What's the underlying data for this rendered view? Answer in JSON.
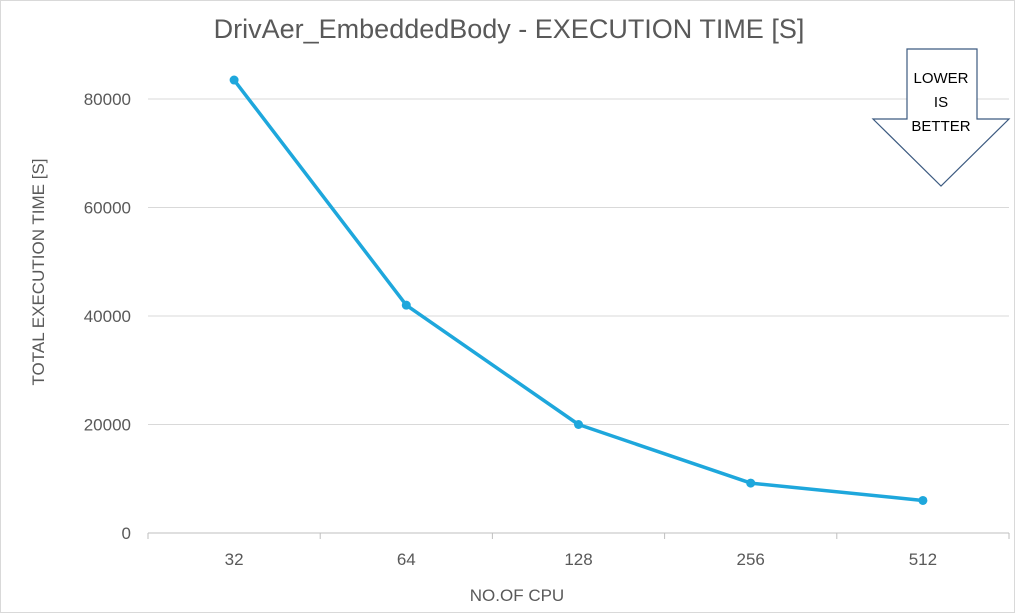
{
  "chart_data": {
    "type": "line",
    "title": "DrivAer_EmbeddedBody - EXECUTION TIME [S]",
    "xlabel": "NO.OF CPU",
    "ylabel": "TOTAL EXECUTION TIME [S]",
    "categories": [
      "32",
      "64",
      "128",
      "256",
      "512"
    ],
    "series": [
      {
        "values": [
          83500,
          42000,
          20000,
          9200,
          6000
        ]
      }
    ],
    "ylim": [
      0,
      90000
    ],
    "yticks": [
      0,
      20000,
      40000,
      60000,
      80000
    ],
    "grid": "horizontal",
    "line_color": "#1ea7dc",
    "callout": {
      "lines": [
        "LOWER",
        "IS",
        "BETTER"
      ],
      "shape": "down-arrow",
      "placement": "top-right"
    }
  }
}
